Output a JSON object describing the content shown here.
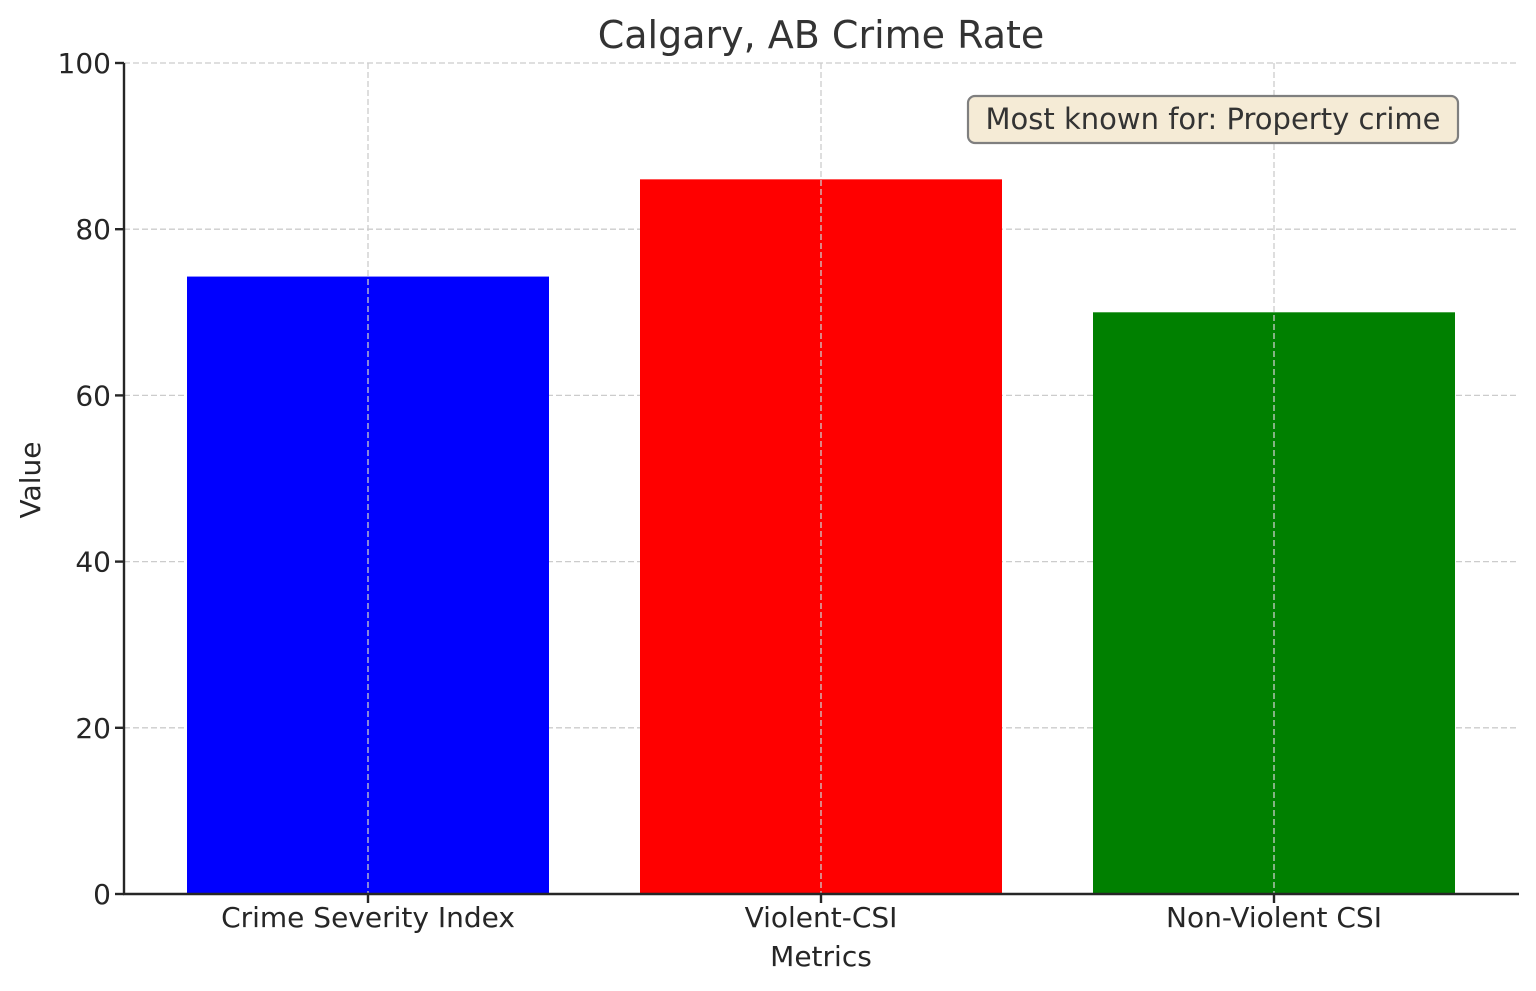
{
  "chart_data": {
    "type": "bar",
    "title": "Calgary, AB Crime Rate",
    "xlabel": "Metrics",
    "ylabel": "Value",
    "categories": [
      "Crime Severity Index",
      "Violent-CSI",
      "Non-Violent CSI"
    ],
    "values": [
      74.3,
      86.0,
      70.0
    ],
    "colors": [
      "#0000ff",
      "#ff0000",
      "#008000"
    ],
    "ylim": [
      0,
      100
    ],
    "yticks": [
      0,
      20,
      40,
      60,
      80,
      100
    ],
    "grid": true,
    "legend": null,
    "annotations": [
      {
        "text": "Most known for: Property crime",
        "position": "top-right",
        "background": "#f5ebd6",
        "border": "#7f7f7f"
      }
    ]
  }
}
